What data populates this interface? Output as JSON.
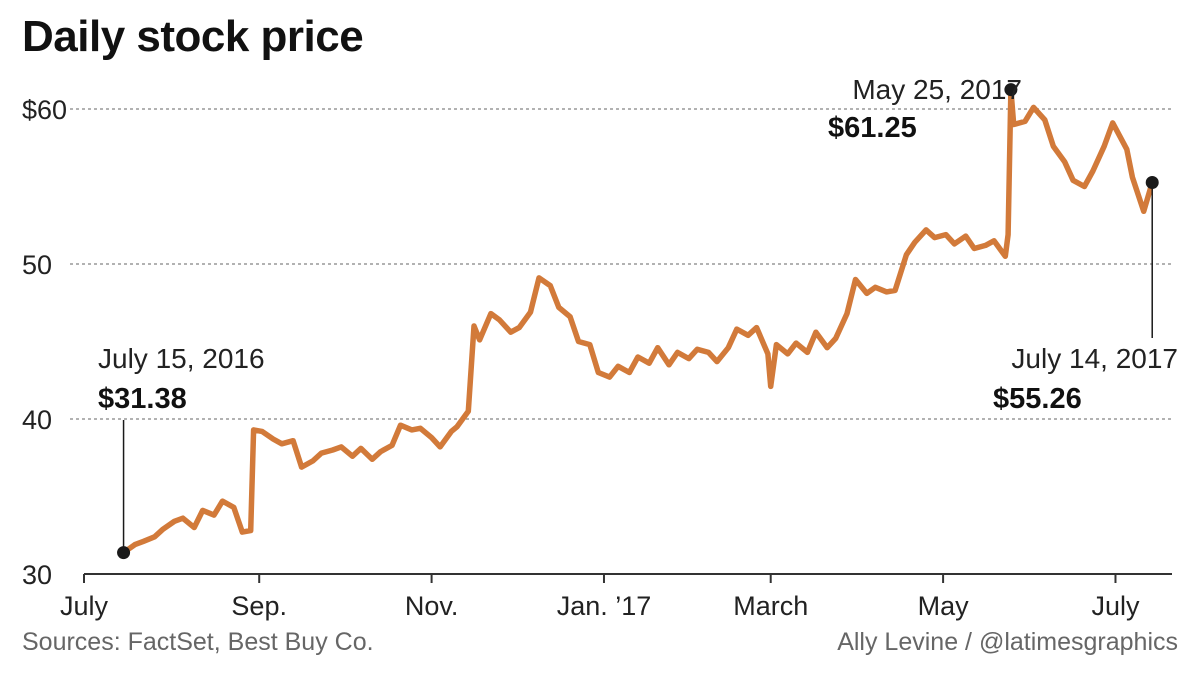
{
  "title": "Daily stock price",
  "sources": "Sources: FactSet, Best Buy Co.",
  "credit": "Ally Levine / @latimesgraphics",
  "colors": {
    "line": "#d27a3a",
    "grid": "#999999",
    "dot": "#1a1a1a",
    "axis": "#333333",
    "text": "#222222",
    "muted": "#666666"
  },
  "chart_data": {
    "type": "line",
    "title": "Daily stock price",
    "xlabel": "",
    "ylabel": "",
    "xlim": [
      "2016-07-01",
      "2017-07-21"
    ],
    "ylim": [
      30,
      62
    ],
    "grid": true,
    "y_ticks": [
      {
        "value": 30,
        "label": "30"
      },
      {
        "value": 40,
        "label": "40"
      },
      {
        "value": 50,
        "label": "50"
      },
      {
        "value": 60,
        "label": "$60"
      }
    ],
    "x_ticks": [
      {
        "date": "2016-07-01",
        "label": "July"
      },
      {
        "date": "2016-09-01",
        "label": "Sep."
      },
      {
        "date": "2016-11-01",
        "label": "Nov."
      },
      {
        "date": "2017-01-01",
        "label": "Jan. ’17"
      },
      {
        "date": "2017-03-01",
        "label": "March"
      },
      {
        "date": "2017-05-01",
        "label": "May"
      },
      {
        "date": "2017-07-01",
        "label": "July"
      }
    ],
    "series": [
      {
        "points": [
          [
            "2016-07-15",
            31.38
          ],
          [
            "2016-07-19",
            31.9
          ],
          [
            "2016-07-22",
            32.1
          ],
          [
            "2016-07-26",
            32.4
          ],
          [
            "2016-07-29",
            32.9
          ],
          [
            "2016-08-02",
            33.4
          ],
          [
            "2016-08-05",
            33.6
          ],
          [
            "2016-08-09",
            33.0
          ],
          [
            "2016-08-12",
            34.1
          ],
          [
            "2016-08-16",
            33.8
          ],
          [
            "2016-08-19",
            34.7
          ],
          [
            "2016-08-23",
            34.3
          ],
          [
            "2016-08-26",
            32.7
          ],
          [
            "2016-08-29",
            32.8
          ],
          [
            "2016-08-30",
            39.3
          ],
          [
            "2016-09-02",
            39.2
          ],
          [
            "2016-09-06",
            38.7
          ],
          [
            "2016-09-09",
            38.4
          ],
          [
            "2016-09-13",
            38.6
          ],
          [
            "2016-09-16",
            36.9
          ],
          [
            "2016-09-20",
            37.3
          ],
          [
            "2016-09-23",
            37.8
          ],
          [
            "2016-09-27",
            38.0
          ],
          [
            "2016-09-30",
            38.2
          ],
          [
            "2016-10-04",
            37.6
          ],
          [
            "2016-10-07",
            38.1
          ],
          [
            "2016-10-11",
            37.4
          ],
          [
            "2016-10-14",
            37.9
          ],
          [
            "2016-10-18",
            38.3
          ],
          [
            "2016-10-21",
            39.6
          ],
          [
            "2016-10-25",
            39.3
          ],
          [
            "2016-10-28",
            39.4
          ],
          [
            "2016-11-01",
            38.8
          ],
          [
            "2016-11-04",
            38.2
          ],
          [
            "2016-11-08",
            39.2
          ],
          [
            "2016-11-10",
            39.5
          ],
          [
            "2016-11-14",
            40.5
          ],
          [
            "2016-11-16",
            46.0
          ],
          [
            "2016-11-18",
            45.1
          ],
          [
            "2016-11-22",
            46.8
          ],
          [
            "2016-11-25",
            46.4
          ],
          [
            "2016-11-29",
            45.6
          ],
          [
            "2016-12-02",
            45.9
          ],
          [
            "2016-12-06",
            46.9
          ],
          [
            "2016-12-09",
            49.1
          ],
          [
            "2016-12-13",
            48.6
          ],
          [
            "2016-12-16",
            47.2
          ],
          [
            "2016-12-20",
            46.6
          ],
          [
            "2016-12-23",
            45.0
          ],
          [
            "2016-12-27",
            44.8
          ],
          [
            "2016-12-30",
            43.0
          ],
          [
            "2017-01-03",
            42.7
          ],
          [
            "2017-01-06",
            43.4
          ],
          [
            "2017-01-10",
            43.0
          ],
          [
            "2017-01-13",
            44.0
          ],
          [
            "2017-01-17",
            43.6
          ],
          [
            "2017-01-20",
            44.6
          ],
          [
            "2017-01-24",
            43.5
          ],
          [
            "2017-01-27",
            44.3
          ],
          [
            "2017-01-31",
            43.9
          ],
          [
            "2017-02-03",
            44.5
          ],
          [
            "2017-02-07",
            44.3
          ],
          [
            "2017-02-10",
            43.7
          ],
          [
            "2017-02-14",
            44.6
          ],
          [
            "2017-02-17",
            45.8
          ],
          [
            "2017-02-21",
            45.4
          ],
          [
            "2017-02-24",
            45.9
          ],
          [
            "2017-02-28",
            44.2
          ],
          [
            "2017-03-01",
            42.1
          ],
          [
            "2017-03-03",
            44.8
          ],
          [
            "2017-03-07",
            44.2
          ],
          [
            "2017-03-10",
            44.9
          ],
          [
            "2017-03-14",
            44.3
          ],
          [
            "2017-03-17",
            45.6
          ],
          [
            "2017-03-21",
            44.6
          ],
          [
            "2017-03-24",
            45.2
          ],
          [
            "2017-03-28",
            46.8
          ],
          [
            "2017-03-31",
            49.0
          ],
          [
            "2017-04-04",
            48.1
          ],
          [
            "2017-04-07",
            48.5
          ],
          [
            "2017-04-11",
            48.2
          ],
          [
            "2017-04-14",
            48.3
          ],
          [
            "2017-04-18",
            50.6
          ],
          [
            "2017-04-21",
            51.4
          ],
          [
            "2017-04-25",
            52.2
          ],
          [
            "2017-04-28",
            51.7
          ],
          [
            "2017-05-02",
            51.9
          ],
          [
            "2017-05-05",
            51.3
          ],
          [
            "2017-05-09",
            51.8
          ],
          [
            "2017-05-12",
            51.0
          ],
          [
            "2017-05-16",
            51.2
          ],
          [
            "2017-05-19",
            51.5
          ],
          [
            "2017-05-23",
            50.5
          ],
          [
            "2017-05-24",
            51.9
          ],
          [
            "2017-05-25",
            61.25
          ],
          [
            "2017-05-26",
            59.0
          ],
          [
            "2017-05-30",
            59.2
          ],
          [
            "2017-06-02",
            60.1
          ],
          [
            "2017-06-06",
            59.3
          ],
          [
            "2017-06-09",
            57.6
          ],
          [
            "2017-06-13",
            56.6
          ],
          [
            "2017-06-16",
            55.4
          ],
          [
            "2017-06-20",
            55.0
          ],
          [
            "2017-06-23",
            56.0
          ],
          [
            "2017-06-27",
            57.6
          ],
          [
            "2017-06-30",
            59.1
          ],
          [
            "2017-07-05",
            57.4
          ],
          [
            "2017-07-07",
            55.6
          ],
          [
            "2017-07-11",
            53.4
          ],
          [
            "2017-07-14",
            55.26
          ]
        ]
      }
    ],
    "annotations": [
      {
        "date": "2016-07-15",
        "value": 31.38,
        "label_date": "July 15, 2016",
        "label_value": "$31.38"
      },
      {
        "date": "2017-05-25",
        "value": 61.25,
        "label_date": "May 25, 2017",
        "label_value": "$61.25"
      },
      {
        "date": "2017-07-14",
        "value": 55.26,
        "label_date": "July 14, 2017",
        "label_value": "$55.26"
      }
    ]
  }
}
